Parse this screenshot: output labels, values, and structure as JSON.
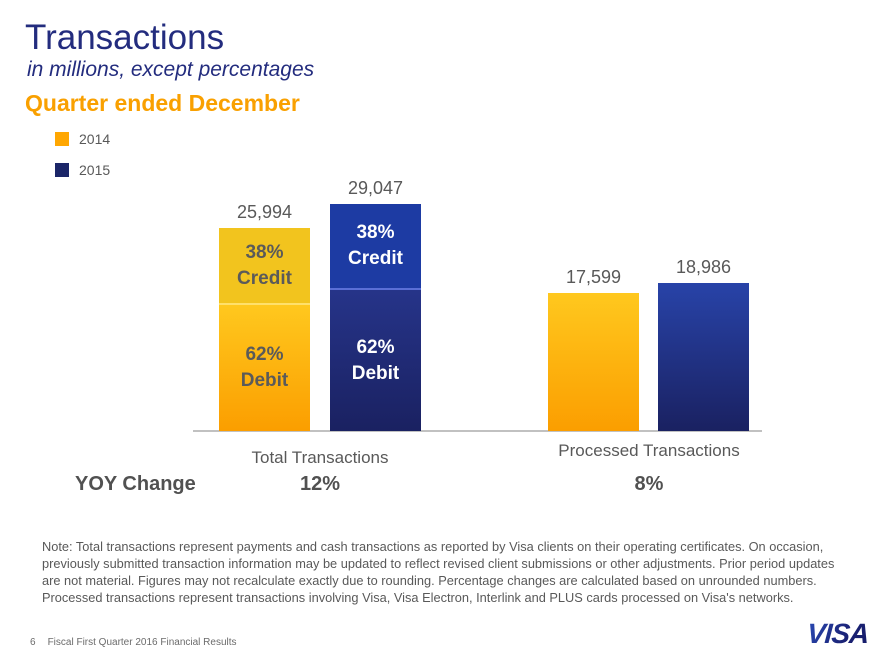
{
  "slide": {
    "title": "Transactions",
    "subtitle": "in millions, except percentages",
    "section_heading": "Quarter ended December",
    "note": "Note: Total transactions represent payments and cash transactions as reported by Visa clients on their operating certificates. On occasion, previously submitted transaction information may be updated to reflect revised client submissions or other adjustments. Prior period updates are not material. Figures may not recalculate exactly due to rounding. Percentage changes are calculated based on unrounded numbers. Processed transactions represent transactions involving Visa, Visa Electron, Interlink and PLUS cards processed on Visa's networks.",
    "footer_page": "6",
    "footer_text": "Fiscal First Quarter 2016 Financial Results",
    "logo_text": "VISA"
  },
  "legend": {
    "items": [
      {
        "label": "2014",
        "color": "#ffa702"
      },
      {
        "label": "2015",
        "color": "#1b2668"
      }
    ]
  },
  "chart_data": {
    "type": "bar",
    "title": "Quarter ended December",
    "unit_note": "in millions, except percentages",
    "categories": [
      "Total Transactions",
      "Processed Transactions"
    ],
    "series": [
      {
        "name": "2014",
        "values": [
          25994,
          17599
        ],
        "value_labels": [
          "25,994",
          "17,599"
        ],
        "color_top": "#ffc81e",
        "color_bottom": "#fb9e00",
        "credit_color": "#f2c41e",
        "debit_top_color": "#ffc81e",
        "divider_color": "#ffe06a",
        "segment_text_color": "#5a5a5a"
      },
      {
        "name": "2015",
        "values": [
          29047,
          18986
        ],
        "value_labels": [
          "29,047",
          "18,986"
        ],
        "color_top": "#2843a8",
        "color_bottom": "#1a2161",
        "credit_color": "#1d3ba3",
        "debit_top_color": "#263489",
        "divider_color": "#5a6fd6",
        "segment_text_color": "#ffffff"
      }
    ],
    "stacked_segments": {
      "applies_to_category": "Total Transactions",
      "credit_pct": 38,
      "debit_pct": 62,
      "credit_label_lines": [
        "38%",
        "Credit"
      ],
      "debit_label_lines": [
        "62%",
        "Debit"
      ]
    },
    "ylim": [
      0,
      29047
    ],
    "axis_color": "#c1c1c1",
    "value_label_color": "#595959",
    "grid": "off",
    "legend_position": "top-left",
    "yoy": {
      "label": "YOY Change",
      "values": [
        "12%",
        "8%"
      ]
    }
  }
}
